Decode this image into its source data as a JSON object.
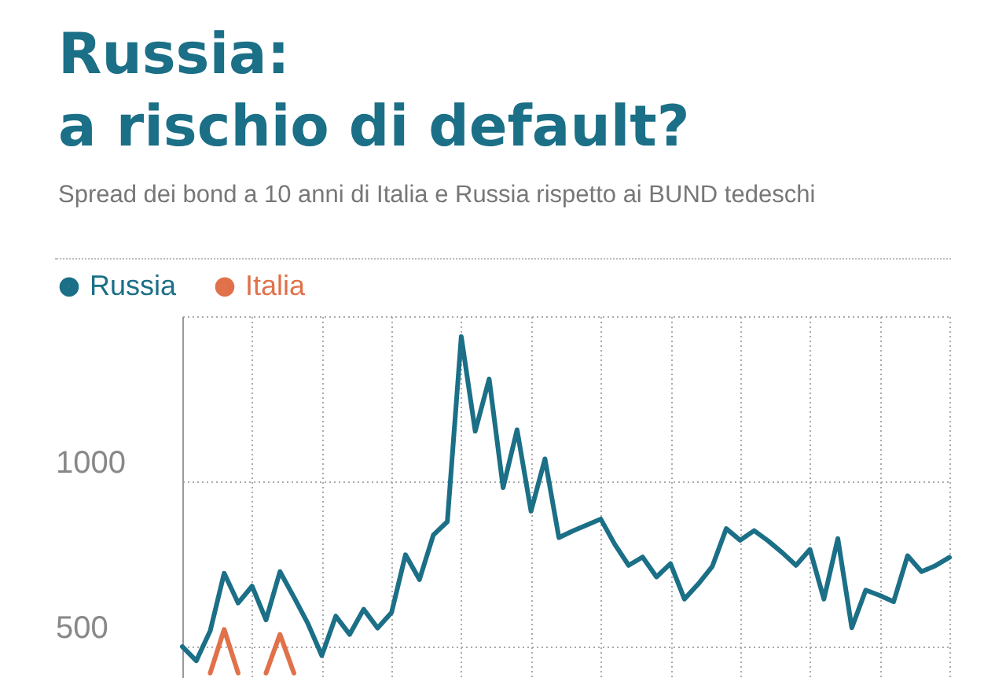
{
  "chart_data": {
    "type": "line",
    "title": "Russia: a rischio di default?",
    "subtitle": "Spread dei bond a 10 anni di Italia e Russia rispetto ai BUND tedeschi",
    "categories": [
      null,
      null,
      null,
      null,
      null,
      null,
      null,
      null,
      null,
      null,
      null,
      null,
      null,
      null,
      null,
      null,
      null,
      null,
      null,
      null,
      null,
      null,
      null,
      null,
      null,
      null,
      null,
      null,
      null,
      null,
      null,
      null,
      null,
      null,
      null,
      null,
      null,
      null,
      null,
      null,
      null,
      null,
      null,
      null,
      null,
      null,
      null,
      null,
      null,
      null,
      null,
      null,
      null,
      null,
      null,
      null
    ],
    "series": [
      {
        "name": "Russia",
        "color": "#1b6f86",
        "values": [
          500,
          457,
          548,
          722,
          632,
          683,
          581,
          727,
          650,
          570,
          473,
          592,
          537,
          613,
          556,
          603,
          778,
          703,
          838,
          878,
          1438,
          1152,
          1310,
          981,
          1156,
          910,
          1068,
          830,
          850,
          868,
          886,
          810,
          746,
          771,
          711,
          751,
          644,
          690,
          743,
          857,
          822,
          851,
          820,
          785,
          746,
          794,
          644,
          827,
          557,
          671,
          655,
          636,
          775,
          727,
          745,
          770
        ]
      },
      {
        "name": "Italia",
        "color": "#e0714a",
        "values": [
          null,
          null,
          420,
          552,
          420,
          null,
          420,
          537,
          420,
          null,
          null,
          null,
          null,
          null,
          null,
          null,
          null,
          null,
          null,
          null,
          null,
          null,
          null,
          null,
          null,
          null,
          null,
          null,
          null,
          null,
          null,
          null,
          null,
          null,
          null,
          null,
          null,
          null,
          null,
          null,
          null,
          null,
          null,
          null,
          null,
          null,
          null,
          null,
          null,
          null,
          null,
          null,
          null,
          null,
          null,
          null
        ]
      }
    ],
    "ylim": [
      405,
      1500
    ],
    "yticks": [
      500,
      1000,
      {
        "value": 1500,
        "label": null
      }
    ],
    "grid": true,
    "legend": "top left",
    "marker": "none",
    "line_style": "solid"
  }
}
